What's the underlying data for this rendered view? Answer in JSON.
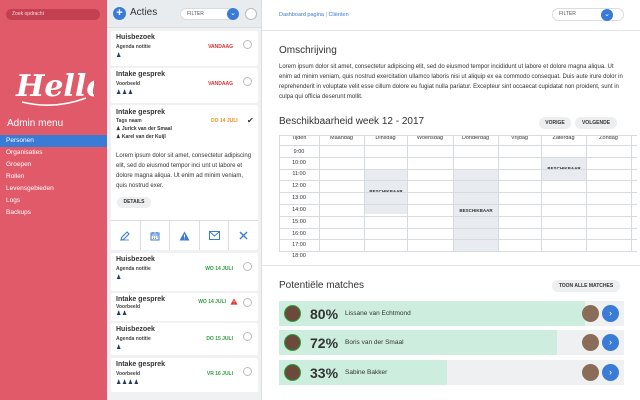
{
  "sidebar": {
    "search_placeholder": "Zoek opdracht",
    "admin_menu": "Admin menu",
    "items": [
      {
        "label": "Personen"
      },
      {
        "label": "Organisaties"
      },
      {
        "label": "Groepen"
      },
      {
        "label": "Rollen"
      },
      {
        "label": "Levensgebieden"
      },
      {
        "label": "Logs"
      },
      {
        "label": "Backups"
      }
    ]
  },
  "actions": {
    "title": "Acties",
    "filter_label": "FILTER",
    "cards_top": [
      {
        "title": "Huisbezoek",
        "tag": "Agenda notitie",
        "people": "♟",
        "date": "VANDAAG",
        "date_color": "red"
      },
      {
        "title": "Intake gesprek",
        "tag": "Voorbeeld",
        "people": "♟♟♟",
        "date": "VANDAAG",
        "date_color": "red"
      }
    ],
    "expanded": {
      "title": "Intake gesprek",
      "tag": "Tags naam",
      "person1": "Jurick van der Smaal",
      "person2": "Karel van der Kuijl",
      "date": "DO 14 JULI",
      "text": "Lorem ipsum dolor sit amet, consectetur adipiscing elit, sed do eiusmod tempor inci unt ut labore et dolore magna aliqua. Ut enim ad minim veniam, quis nostrud exer.",
      "details_label": "DETAILS"
    },
    "cards_bottom": [
      {
        "title": "Huisbezoek",
        "tag": "Agenda notitie",
        "people": "♟",
        "date": "WO 14 JULI",
        "date_color": "green"
      },
      {
        "title": "Intake gesprek",
        "tag": "Voorbeeld",
        "people": "♟♟",
        "date": "WO 14 JULI",
        "date_color": "green"
      },
      {
        "title": "Huisbezoek",
        "tag": "Agenda notitie",
        "people": "♟",
        "date": "DO 15 JULI",
        "date_color": "green"
      },
      {
        "title": "Intake gesprek",
        "tag": "Voorbeeld",
        "people": "♟♟♟♟",
        "date": "VR 16 JULI",
        "date_color": "green"
      }
    ]
  },
  "main": {
    "breadcrumb": {
      "home": "Dashboard pagina",
      "separator": "|",
      "current": "Cliënten"
    },
    "filter_label": "FILTER",
    "omschrijving": {
      "title": "Omschrijving",
      "text": "Lorem ipsum dolor sit amet, consectetur adipiscing elit, sed do eiusmod tempor incididunt ut labore et dolore magna aliqua. Ut enim ad minim veniam, quis nostrud exercitation ullamco laboris nisi ut aliquip ex ea commodo consequat. Duis aute irure dolor in reprehenderit in voluptate velit esse cillum dolore eu fugiat nulla pariatur. Excepteur sint occaecat cupidatat non proident, sunt in culpa qui officia deserunt mollit."
    },
    "schedule": {
      "title": "Beschikbaarheid week 12 - 2017",
      "prev_label": "VORIGE",
      "next_label": "VOLGENDE",
      "columns": [
        "Tijden",
        "Maandag",
        "Dinsdag",
        "Woensdag",
        "Donderdag",
        "Vrijdag",
        "Zaterdag",
        "Zondag"
      ],
      "times": [
        "9:00",
        "10:00",
        "11:00",
        "12:00",
        "13:00",
        "14:00",
        "15:00",
        "16:00",
        "17:00",
        "18:00"
      ],
      "available_label": "BESCHIKBAAR"
    },
    "matches": {
      "title": "Potentiële matches",
      "all_label": "TOON ALLE MATCHES",
      "items": [
        {
          "percent": "80%",
          "name": "Lissane van Echtmond",
          "value": 80
        },
        {
          "percent": "72%",
          "name": "Boris van der Smaal",
          "value": 72
        },
        {
          "percent": "33%",
          "name": "Sabine Bakker",
          "value": 33
        }
      ]
    }
  }
}
